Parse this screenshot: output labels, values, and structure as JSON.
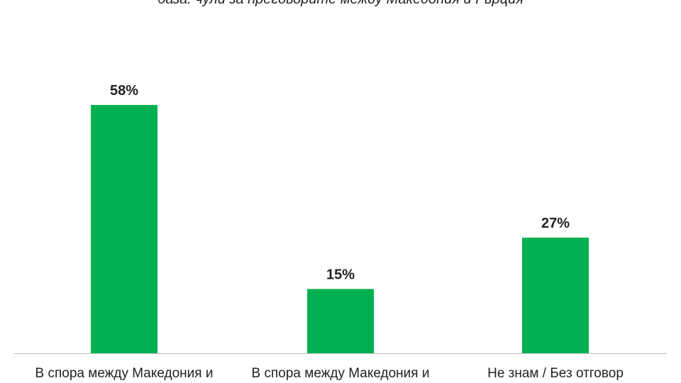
{
  "chart_data": {
    "type": "bar",
    "subtitle": "база: чули за преговорите между Македония и Гърция",
    "categories": [
      "В спора между Македония и",
      "В спора между Македония и",
      "Не знам / Без отговор"
    ],
    "values": [
      58,
      15,
      27
    ],
    "data_labels": [
      "58%",
      "15%",
      "27%"
    ],
    "ylim": [
      0,
      60
    ],
    "grid": false,
    "legend": "none",
    "bar_color": "#00b050",
    "axis_color": "#bfbfbf"
  }
}
